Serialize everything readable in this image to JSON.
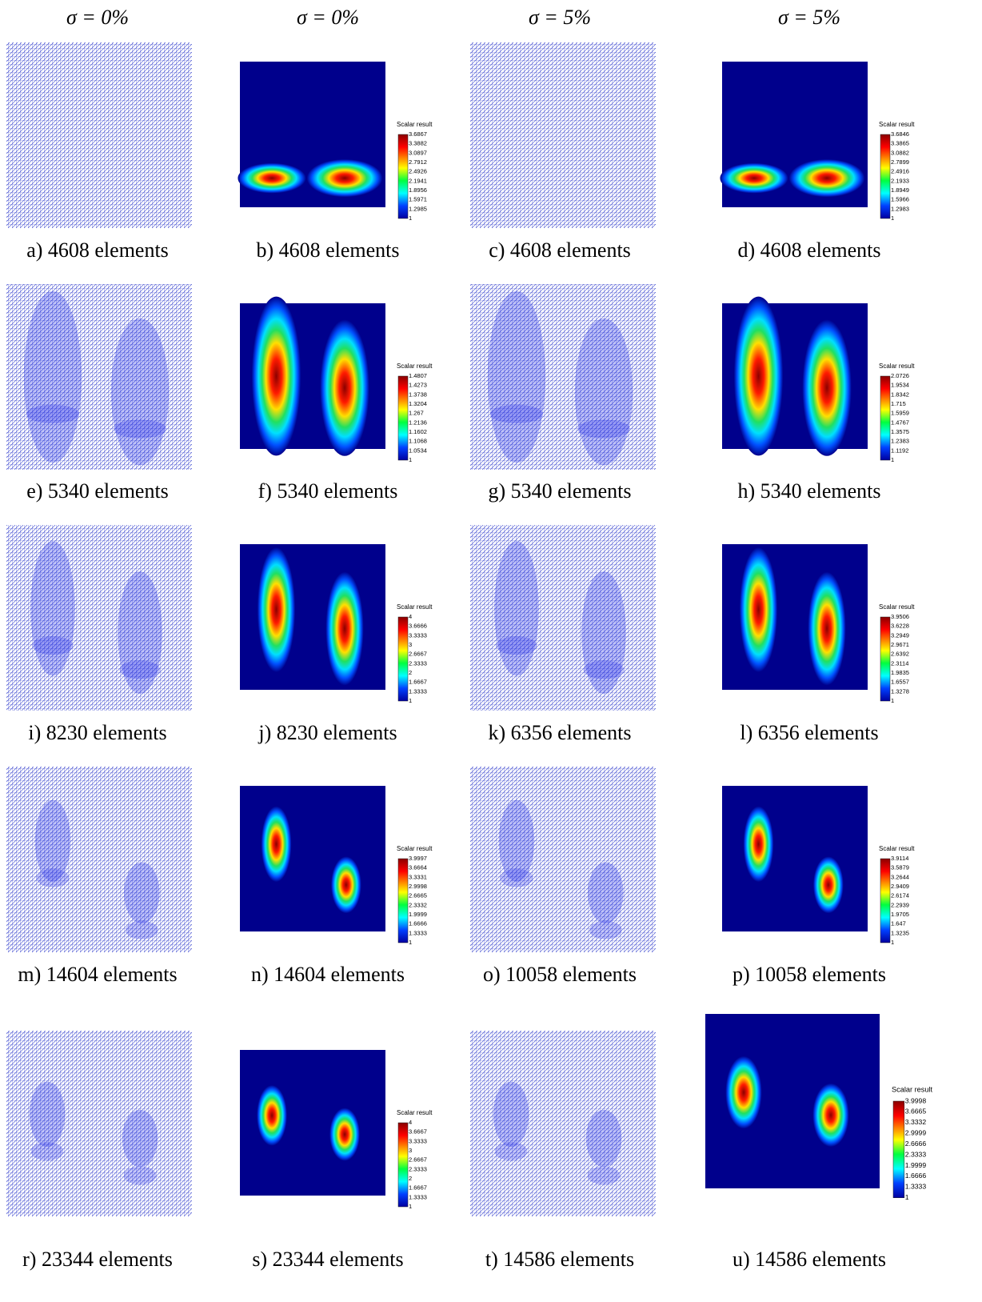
{
  "headers": [
    "σ = 0%",
    "σ = 0%",
    "σ = 5%",
    "σ = 5%"
  ],
  "panels": [
    {
      "caption": "a) 4608 elements"
    },
    {
      "caption": "b) 4608 elements",
      "colorbar": {
        "title": "Scalar result",
        "ticks": [
          "3.6867",
          "3.3882",
          "3.0897",
          "2.7912",
          "2.4926",
          "2.1941",
          "1.8956",
          "1.5971",
          "1.2985",
          "1"
        ]
      }
    },
    {
      "caption": "c) 4608 elements"
    },
    {
      "caption": "d) 4608 elements",
      "colorbar": {
        "title": "Scalar result",
        "ticks": [
          "3.6846",
          "3.3865",
          "3.0882",
          "2.7899",
          "2.4916",
          "2.1933",
          "1.8949",
          "1.5966",
          "1.2983",
          "1"
        ]
      }
    },
    {
      "caption": "e) 5340 elements"
    },
    {
      "caption": "f) 5340 elements",
      "colorbar": {
        "title": "Scalar result",
        "ticks": [
          "1.4807",
          "1.4273",
          "1.3738",
          "1.3204",
          "1.267",
          "1.2136",
          "1.1602",
          "1.1068",
          "1.0534",
          "1"
        ]
      }
    },
    {
      "caption": "g) 5340 elements"
    },
    {
      "caption": "h) 5340 elements",
      "colorbar": {
        "title": "Scalar result",
        "ticks": [
          "2.0726",
          "1.9534",
          "1.8342",
          "1.715",
          "1.5959",
          "1.4767",
          "1.3575",
          "1.2383",
          "1.1192",
          "1"
        ]
      }
    },
    {
      "caption": "i) 8230 elements"
    },
    {
      "caption": "j) 8230 elements",
      "colorbar": {
        "title": "Scalar result",
        "ticks": [
          "4",
          "3.6666",
          "3.3333",
          "3",
          "2.6667",
          "2.3333",
          "2",
          "1.6667",
          "1.3333",
          "1"
        ]
      }
    },
    {
      "caption": "k) 6356 elements"
    },
    {
      "caption": "l) 6356 elements",
      "colorbar": {
        "title": "Scalar result",
        "ticks": [
          "3.9506",
          "3.6228",
          "3.2949",
          "2.9671",
          "2.6392",
          "2.3114",
          "1.9835",
          "1.6557",
          "1.3278",
          "1"
        ]
      }
    },
    {
      "caption": "m) 14604 elements"
    },
    {
      "caption": "n) 14604 elements",
      "colorbar": {
        "title": "Scalar result",
        "ticks": [
          "3.9997",
          "3.6664",
          "3.3331",
          "2.9998",
          "2.6665",
          "2.3332",
          "1.9999",
          "1.6666",
          "1.3333",
          "1"
        ]
      }
    },
    {
      "caption": "o) 10058 elements"
    },
    {
      "caption": "p) 10058 elements",
      "colorbar": {
        "title": "Scalar result",
        "ticks": [
          "3.9114",
          "3.5879",
          "3.2644",
          "2.9409",
          "2.6174",
          "2.2939",
          "1.9705",
          "1.647",
          "1.3235",
          "1"
        ]
      }
    },
    {
      "caption": "r) 23344 elements"
    },
    {
      "caption": "s) 23344 elements",
      "colorbar": {
        "title": "Scalar result",
        "ticks": [
          "4",
          "3.6667",
          "3.3333",
          "3",
          "2.6667",
          "2.3333",
          "2",
          "1.6667",
          "1.3333",
          "1"
        ]
      }
    },
    {
      "caption": "t) 14586 elements"
    },
    {
      "caption": "u) 14586 elements",
      "colorbar": {
        "title": "Scalar result",
        "ticks": [
          "3.9998",
          "3.6665",
          "3.3332",
          "2.9999",
          "2.6666",
          "2.3333",
          "1.9999",
          "1.6666",
          "1.3333",
          "1"
        ]
      }
    }
  ]
}
